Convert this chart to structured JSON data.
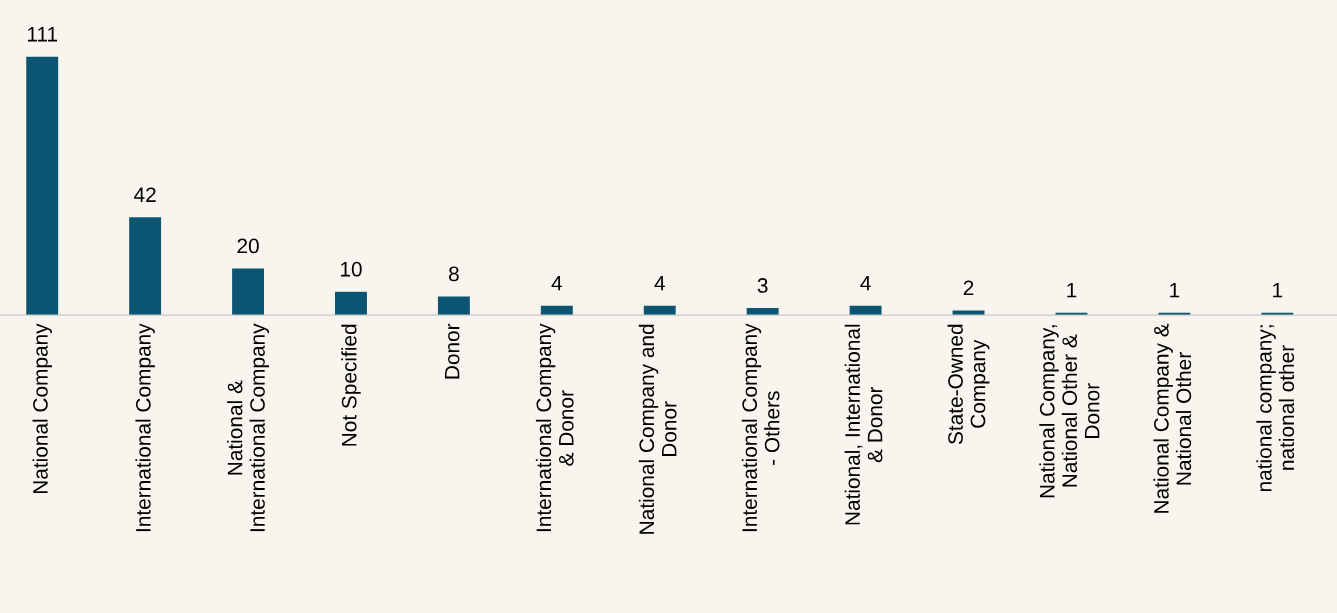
{
  "chart_data": {
    "type": "bar",
    "categories": [
      "National Company",
      "International Company",
      "National &\nInternational Company",
      "Not Specified",
      "Donor",
      "International Company\n& Donor",
      "National Company and\nDonor",
      "International Company\n- Others",
      "National, International\n& Donor",
      "State-Owned\nCompany",
      "National Company,\nNational Other &\nDonor",
      "National Company &\nNational Other",
      "national company;\nnational other"
    ],
    "values": [
      111,
      42,
      20,
      10,
      8,
      4,
      4,
      3,
      4,
      2,
      1,
      1,
      1
    ],
    "color": "#0b5572",
    "data_labels": true,
    "grid": false,
    "legend": false
  }
}
